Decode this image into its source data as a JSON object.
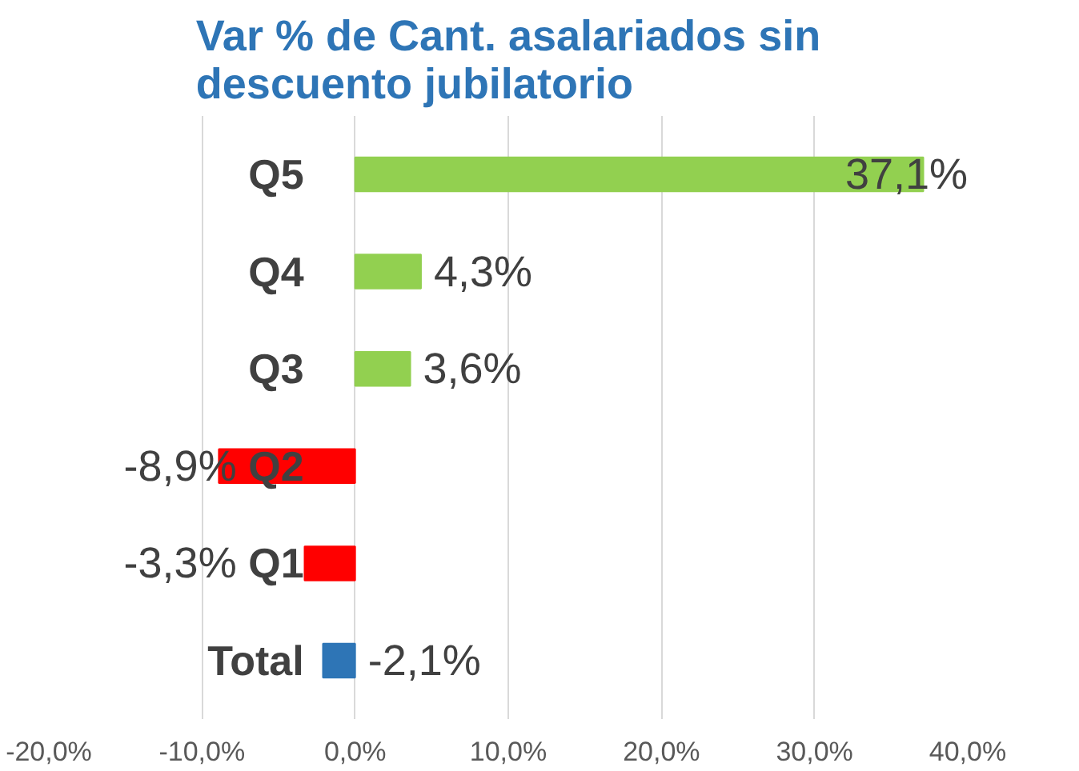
{
  "chart_data": {
    "type": "bar",
    "orientation": "horizontal",
    "title": "Var % de Cant. asalariados sin\ndescuento jubilatorio",
    "categories": [
      "Q5",
      "Q4",
      "Q3",
      "Q2",
      "Q1",
      "Total"
    ],
    "values": [
      37.1,
      4.3,
      3.6,
      -8.9,
      -3.3,
      -2.1
    ],
    "colors": [
      "#92d050",
      "#92d050",
      "#92d050",
      "#ff0000",
      "#ff0000",
      "#2e75b6"
    ],
    "value_labels": [
      "37,1%",
      "4,3%",
      "3,6%",
      "-8,9%",
      "-3,3%",
      "-2,1%"
    ],
    "xlim": [
      -20,
      40
    ],
    "xticks": [
      {
        "value": -20,
        "label": "-20,0%"
      },
      {
        "value": -10,
        "label": "-10,0%"
      },
      {
        "value": 0,
        "label": "0,0%"
      },
      {
        "value": 10,
        "label": "10,0%"
      },
      {
        "value": 20,
        "label": "20,0%"
      },
      {
        "value": 30,
        "label": "30,0%"
      },
      {
        "value": 40,
        "label": "40,0%"
      }
    ],
    "grid": "x"
  }
}
